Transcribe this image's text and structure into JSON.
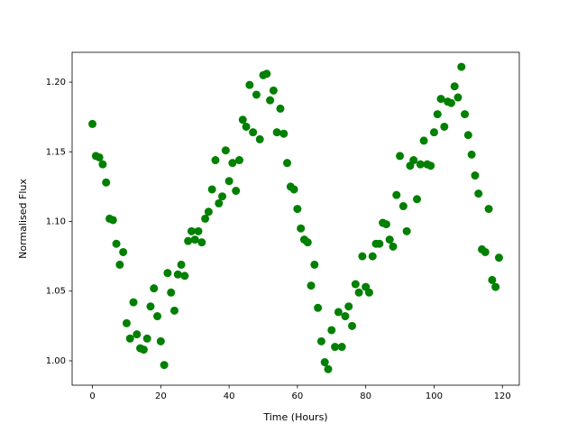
{
  "chart_data": {
    "type": "scatter",
    "xlabel": "Time (Hours)",
    "ylabel": "Normalised Flux",
    "color": "#008000",
    "x": [
      0,
      1,
      2,
      3,
      4,
      5,
      6,
      7,
      8,
      9,
      10,
      11,
      12,
      13,
      14,
      15,
      16,
      17,
      18,
      19,
      20,
      21,
      22,
      23,
      24,
      25,
      26,
      27,
      28,
      29,
      30,
      31,
      32,
      33,
      34,
      35,
      36,
      37,
      38,
      39,
      40,
      41,
      42,
      43,
      44,
      45,
      46,
      47,
      48,
      49,
      50,
      51,
      52,
      53,
      54,
      55,
      56,
      57,
      58,
      59,
      60,
      61,
      62,
      63,
      64,
      65,
      66,
      67,
      68,
      69,
      70,
      71,
      72,
      73,
      74,
      75,
      76,
      77,
      78,
      79,
      80,
      81,
      82,
      83,
      84,
      85,
      86,
      87,
      88,
      89,
      90,
      91,
      92,
      93,
      94,
      95,
      96,
      97,
      98,
      99,
      100,
      101,
      102,
      103,
      104,
      105,
      106,
      107,
      108,
      109,
      110,
      111,
      112,
      113,
      114,
      115,
      116,
      117,
      118,
      119
    ],
    "values": [
      1.17,
      1.147,
      1.146,
      1.141,
      1.128,
      1.102,
      1.101,
      1.084,
      1.069,
      1.078,
      1.027,
      1.016,
      1.042,
      1.019,
      1.009,
      1.008,
      1.016,
      1.039,
      1.052,
      1.032,
      1.014,
      0.997,
      1.063,
      1.049,
      1.036,
      1.062,
      1.069,
      1.061,
      1.086,
      1.093,
      1.087,
      1.093,
      1.085,
      1.102,
      1.107,
      1.123,
      1.144,
      1.113,
      1.118,
      1.151,
      1.129,
      1.142,
      1.122,
      1.144,
      1.173,
      1.168,
      1.198,
      1.164,
      1.191,
      1.159,
      1.205,
      1.206,
      1.187,
      1.194,
      1.164,
      1.181,
      1.163,
      1.142,
      1.125,
      1.123,
      1.109,
      1.095,
      1.087,
      1.085,
      1.054,
      1.069,
      1.038,
      1.014,
      0.999,
      0.994,
      1.022,
      1.01,
      1.035,
      1.01,
      1.032,
      1.039,
      1.025,
      1.055,
      1.049,
      1.075,
      1.053,
      1.049,
      1.075,
      1.084,
      1.084,
      1.099,
      1.098,
      1.087,
      1.082,
      1.119,
      1.147,
      1.111,
      1.093,
      1.14,
      1.144,
      1.116,
      1.141,
      1.158,
      1.141,
      1.14,
      1.164,
      1.177,
      1.188,
      1.168,
      1.186,
      1.185,
      1.197,
      1.189,
      1.211,
      1.177,
      1.162,
      1.148,
      1.133,
      1.12,
      1.08,
      1.078,
      1.109,
      1.058,
      1.053,
      1.074
    ],
    "xlim": [
      -5.95,
      124.95
    ],
    "xticks": [
      0,
      20,
      40,
      60,
      80,
      100,
      120
    ],
    "ylim": [
      0.9825,
      1.2214
    ],
    "yticks": [
      {
        "value": 1.0,
        "label": "1.00"
      },
      1.05,
      {
        "value": 1.1,
        "label": "1.10"
      },
      1.15,
      {
        "value": 1.2,
        "label": "1.20"
      }
    ]
  }
}
